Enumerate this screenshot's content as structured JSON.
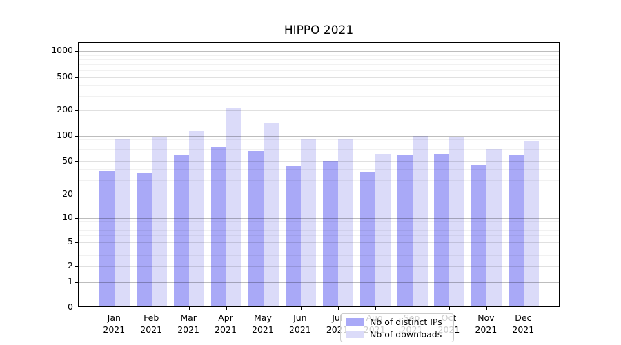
{
  "title": "HIPPO 2021",
  "legend": {
    "items": [
      {
        "label": "Nb of distinct IPs",
        "series_index": 0
      },
      {
        "label": "Nb of downloads",
        "series_index": 1
      }
    ]
  },
  "chart_data": {
    "type": "bar",
    "title": "HIPPO 2021",
    "categories": [
      "Jan",
      "Feb",
      "Mar",
      "Apr",
      "May",
      "Jun",
      "Jul",
      "Aug",
      "Sep",
      "Oct",
      "Nov",
      "Dec"
    ],
    "x_tick_second_line": "2021",
    "series": [
      {
        "name": "Nb of distinct IPs",
        "color": "#a9a9f7",
        "values": [
          37,
          35,
          58,
          71,
          64,
          43,
          49,
          36,
          58,
          59,
          44,
          57
        ]
      },
      {
        "name": "Nb of downloads",
        "color": "#dbdbf9",
        "values": [
          89,
          93,
          110,
          207,
          139,
          90,
          89,
          59,
          96,
          92,
          67,
          83
        ]
      }
    ],
    "yscale": "symlog",
    "ylim": [
      0,
      1250
    ],
    "yticks": [
      0,
      1,
      2,
      5,
      10,
      20,
      50,
      100,
      200,
      500,
      1000
    ],
    "decade_gridlines": [
      1,
      10,
      100,
      1000
    ],
    "mid_gridlines": [
      2,
      5,
      20,
      50,
      200,
      500
    ],
    "minor_gridlines": [
      3,
      4,
      6,
      7,
      8,
      9,
      30,
      40,
      60,
      70,
      80,
      90,
      300,
      400,
      600,
      700,
      800,
      900
    ],
    "grid": true,
    "legend_position": "lower center"
  }
}
